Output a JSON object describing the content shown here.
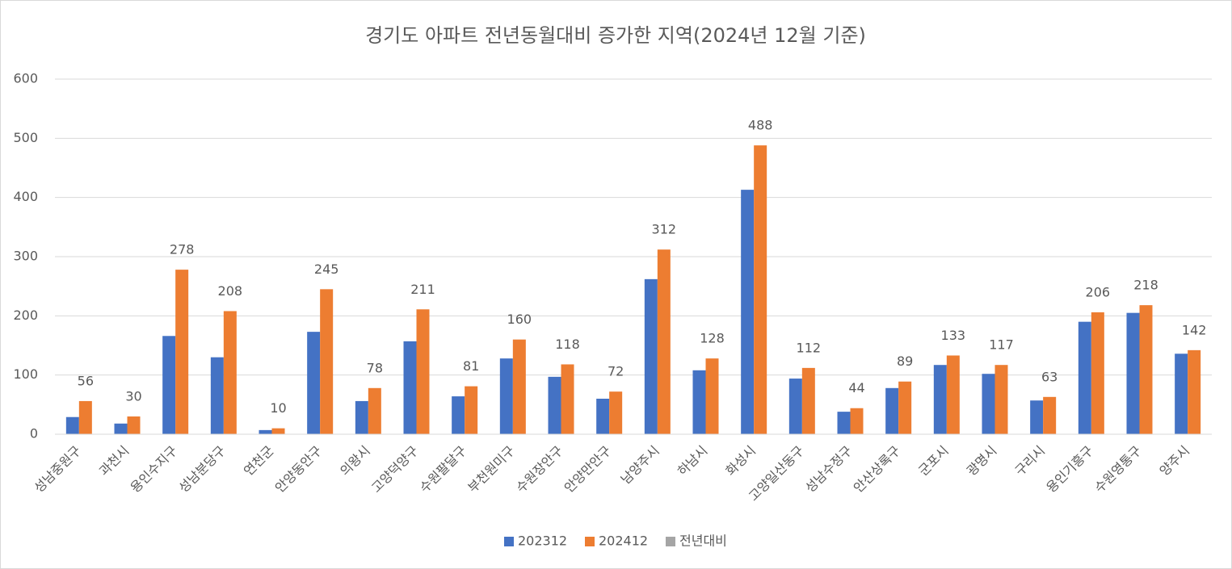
{
  "chart_data": {
    "type": "bar",
    "title": "경기도 아파트 전년동월대비 증가한 지역(2024년 12월 기준)",
    "categories": [
      "성남중원구",
      "과천시",
      "용인수지구",
      "성남분당구",
      "연천군",
      "안양동안구",
      "의왕시",
      "고양덕양구",
      "수원팔달구",
      "부천원미구",
      "수원장안구",
      "안양만안구",
      "남양주시",
      "하남시",
      "화성시",
      "고양일산동구",
      "성남수정구",
      "안산상록구",
      "군포시",
      "광명시",
      "구리시",
      "용인기흥구",
      "수원영통구",
      "양주시"
    ],
    "series": [
      {
        "name": "202312",
        "color": "#4472c4",
        "values": [
          29,
          18,
          166,
          130,
          7,
          173,
          56,
          157,
          64,
          128,
          97,
          60,
          262,
          108,
          413,
          94,
          38,
          78,
          117,
          102,
          57,
          190,
          205,
          136
        ]
      },
      {
        "name": "202412",
        "color": "#ed7d31",
        "values": [
          56,
          30,
          278,
          208,
          10,
          245,
          78,
          211,
          81,
          160,
          118,
          72,
          312,
          128,
          488,
          112,
          44,
          89,
          133,
          117,
          63,
          206,
          218,
          142
        ],
        "data_labels": true
      },
      {
        "name": "전년대비",
        "color": "#a5a5a5",
        "values": [
          null,
          null,
          null,
          null,
          null,
          null,
          null,
          null,
          null,
          null,
          null,
          null,
          null,
          null,
          null,
          null,
          null,
          null,
          null,
          null,
          null,
          null,
          null,
          null
        ]
      }
    ],
    "ylim": [
      0,
      600
    ],
    "yticks": [
      0,
      100,
      200,
      300,
      400,
      500,
      600
    ],
    "grid": true,
    "legend": "bottom"
  }
}
